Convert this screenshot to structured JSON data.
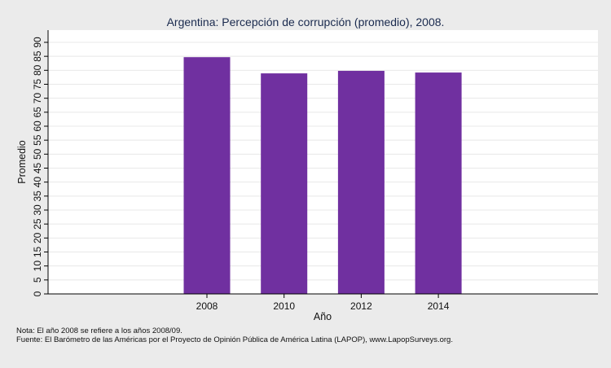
{
  "chart_data": {
    "type": "bar",
    "title": "Argentina: Percepción de corrupción (promedio), 2008.",
    "xlabel": "Año",
    "ylabel": "Promedio",
    "categories": [
      "2008",
      "2010",
      "2012",
      "2014"
    ],
    "values": [
      84.7,
      78.9,
      79.8,
      79.2
    ],
    "ylim": [
      0,
      90
    ],
    "yticks": [
      "0",
      "5",
      "10",
      "15",
      "20",
      "25",
      "30",
      "35",
      "40",
      "45",
      "50",
      "55",
      "60",
      "65",
      "70",
      "75",
      "80",
      "85",
      "90"
    ],
    "bar_color": "#7030a0",
    "grid": true,
    "legend": "none"
  },
  "notes": {
    "nota": "Nota: El año 2008 se refiere a los años 2008/09.",
    "fuente": "Fuente: El Barómetro de las Américas por el Proyecto de Opinión Pública de América Latina (LAPOP), www.LapopSurveys.org."
  }
}
